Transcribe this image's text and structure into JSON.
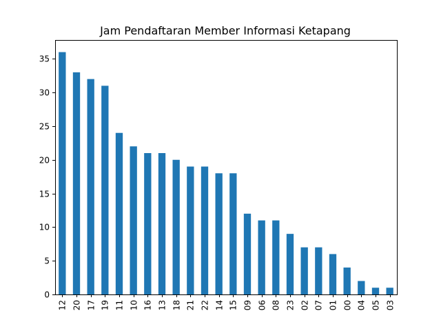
{
  "chart_data": {
    "type": "bar",
    "title": "Jam Pendaftaran Member Informasi Ketapang",
    "xlabel": "",
    "ylabel": "",
    "categories": [
      "12",
      "20",
      "17",
      "19",
      "11",
      "10",
      "16",
      "13",
      "18",
      "21",
      "22",
      "14",
      "15",
      "09",
      "06",
      "08",
      "23",
      "02",
      "07",
      "01",
      "00",
      "04",
      "05",
      "03"
    ],
    "values": [
      36,
      33,
      32,
      31,
      24,
      22,
      21,
      21,
      20,
      19,
      19,
      18,
      18,
      12,
      11,
      11,
      9,
      7,
      7,
      6,
      4,
      2,
      1,
      1
    ],
    "ylim": [
      0,
      37.8
    ],
    "yticks": [
      0,
      5,
      10,
      15,
      20,
      25,
      30,
      35
    ],
    "bar_color": "#1f77b4",
    "grid": false,
    "legend": "none"
  }
}
